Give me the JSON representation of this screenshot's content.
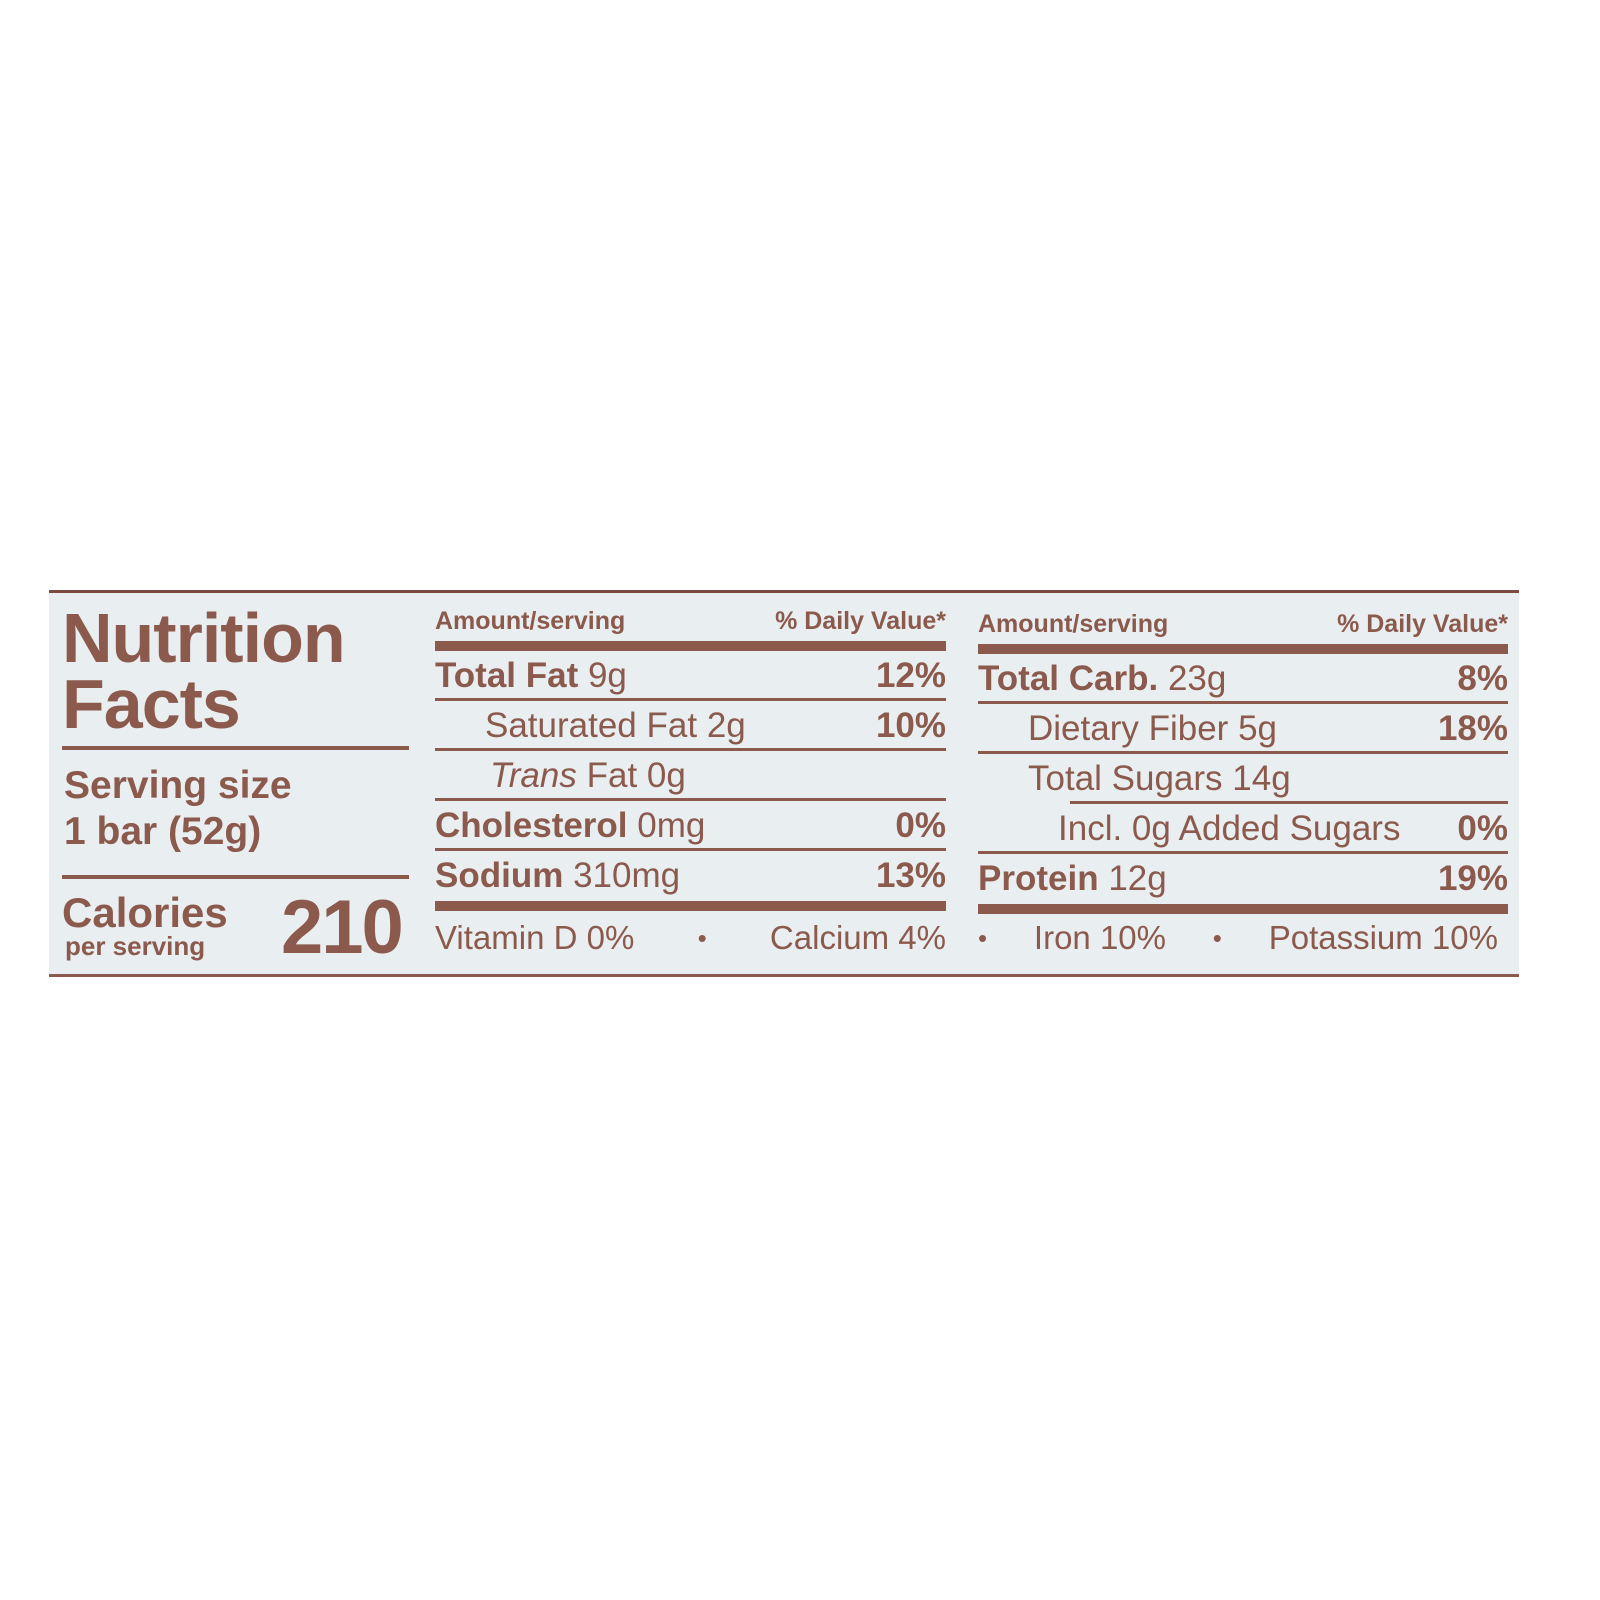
{
  "label": {
    "title_line1": "Nutrition",
    "title_line2": "Facts",
    "serving_size_label": "Serving size",
    "serving_size_value": "1 bar (52g)",
    "calories_label": "Calories",
    "per_serving_label": "per serving",
    "calories_value": "210",
    "text_color": "#8b5a4d",
    "background_color": "#e9eef1"
  },
  "left_table": {
    "header_amount": "Amount/serving",
    "header_dv": "% Daily Value*",
    "rows": [
      {
        "name": "Total Fat",
        "amount": "9g",
        "dv": "12%"
      },
      {
        "name": "Saturated Fat",
        "amount": "2g",
        "dv": "10%"
      },
      {
        "name": "Trans",
        "name_suffix": "Fat",
        "amount": "0g",
        "dv": ""
      },
      {
        "name": "Cholesterol",
        "amount": "0mg",
        "dv": "0%"
      },
      {
        "name": "Sodium",
        "amount": "310mg",
        "dv": "13%"
      }
    ]
  },
  "right_table": {
    "header_amount": "Amount/serving",
    "header_dv": "% Daily Value*",
    "rows": [
      {
        "name": "Total Carb.",
        "amount": "23g",
        "dv": "8%"
      },
      {
        "name": "Dietary Fiber",
        "amount": "5g",
        "dv": "18%"
      },
      {
        "name": "Total Sugars",
        "amount": "14g",
        "dv": ""
      },
      {
        "name": "Incl. 0g Added Sugars",
        "amount": "",
        "dv": "0%"
      },
      {
        "name": "Protein",
        "amount": "12g",
        "dv": "19%"
      }
    ]
  },
  "vitamins": {
    "bullet": "•",
    "items": [
      "Vitamin D 0%",
      "Calcium 4%",
      "Iron 10%",
      "Potassium 10%"
    ]
  }
}
